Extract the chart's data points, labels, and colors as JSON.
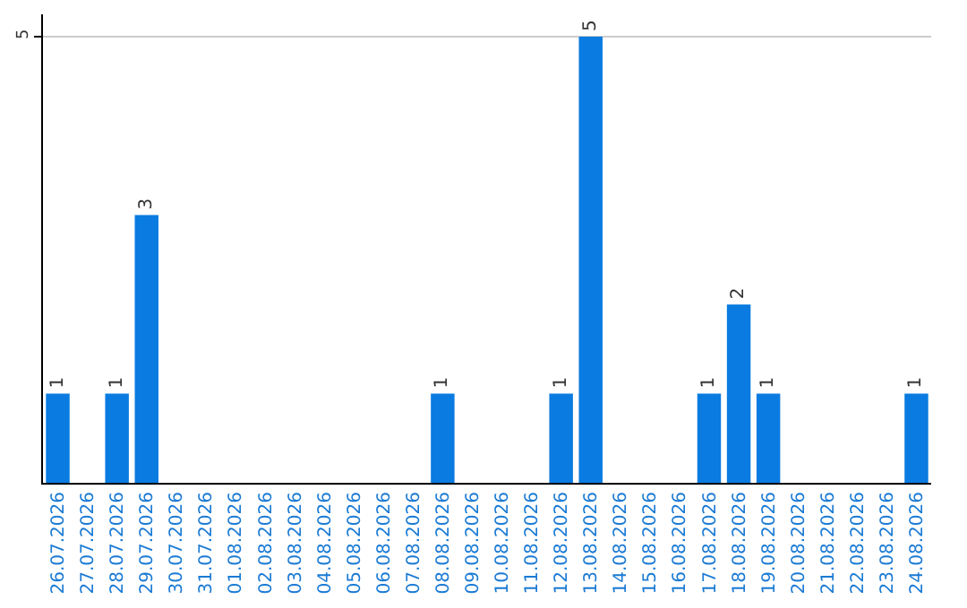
{
  "chart_data": {
    "type": "bar",
    "categories": [
      "26.07.2026",
      "27.07.2026",
      "28.07.2026",
      "29.07.2026",
      "30.07.2026",
      "31.07.2026",
      "01.08.2026",
      "02.08.2026",
      "03.08.2026",
      "04.08.2026",
      "05.08.2026",
      "06.08.2026",
      "07.08.2026",
      "08.08.2026",
      "09.08.2026",
      "10.08.2026",
      "11.08.2026",
      "12.08.2026",
      "13.08.2026",
      "14.08.2026",
      "15.08.2026",
      "16.08.2026",
      "17.08.2026",
      "18.08.2026",
      "19.08.2026",
      "20.08.2026",
      "21.08.2026",
      "22.08.2026",
      "23.08.2026",
      "24.08.2026"
    ],
    "values": [
      1,
      0,
      1,
      3,
      0,
      0,
      0,
      0,
      0,
      0,
      0,
      0,
      0,
      1,
      0,
      0,
      0,
      1,
      5,
      0,
      0,
      0,
      1,
      2,
      1,
      0,
      0,
      0,
      0,
      1
    ],
    "value_labels": [
      "1",
      null,
      "1",
      "3",
      null,
      null,
      null,
      null,
      null,
      null,
      null,
      null,
      null,
      "1",
      null,
      null,
      null,
      "1",
      "5",
      null,
      null,
      null,
      "1",
      "2",
      "1",
      null,
      null,
      null,
      null,
      "1"
    ],
    "color": "#0a7be0",
    "ylim": [
      0,
      5.25
    ],
    "yticks": [
      5
    ],
    "grid": "y"
  }
}
